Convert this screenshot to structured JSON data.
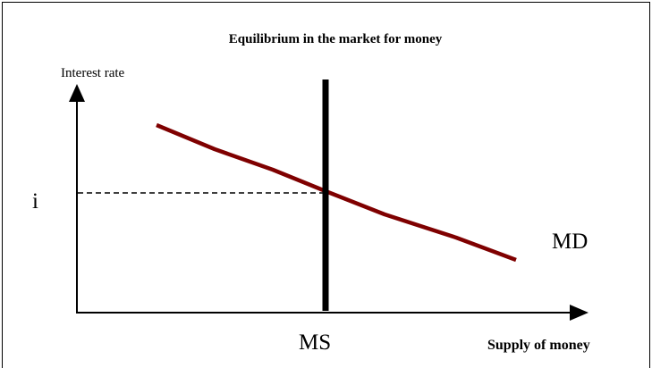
{
  "title": "Equilibrium in the market for money",
  "y_axis_label": "Interest rate",
  "x_axis_label": "Supply of money",
  "equilibrium_rate_label": "i",
  "demand_curve_label": "MD",
  "supply_curve_label": "MS"
}
